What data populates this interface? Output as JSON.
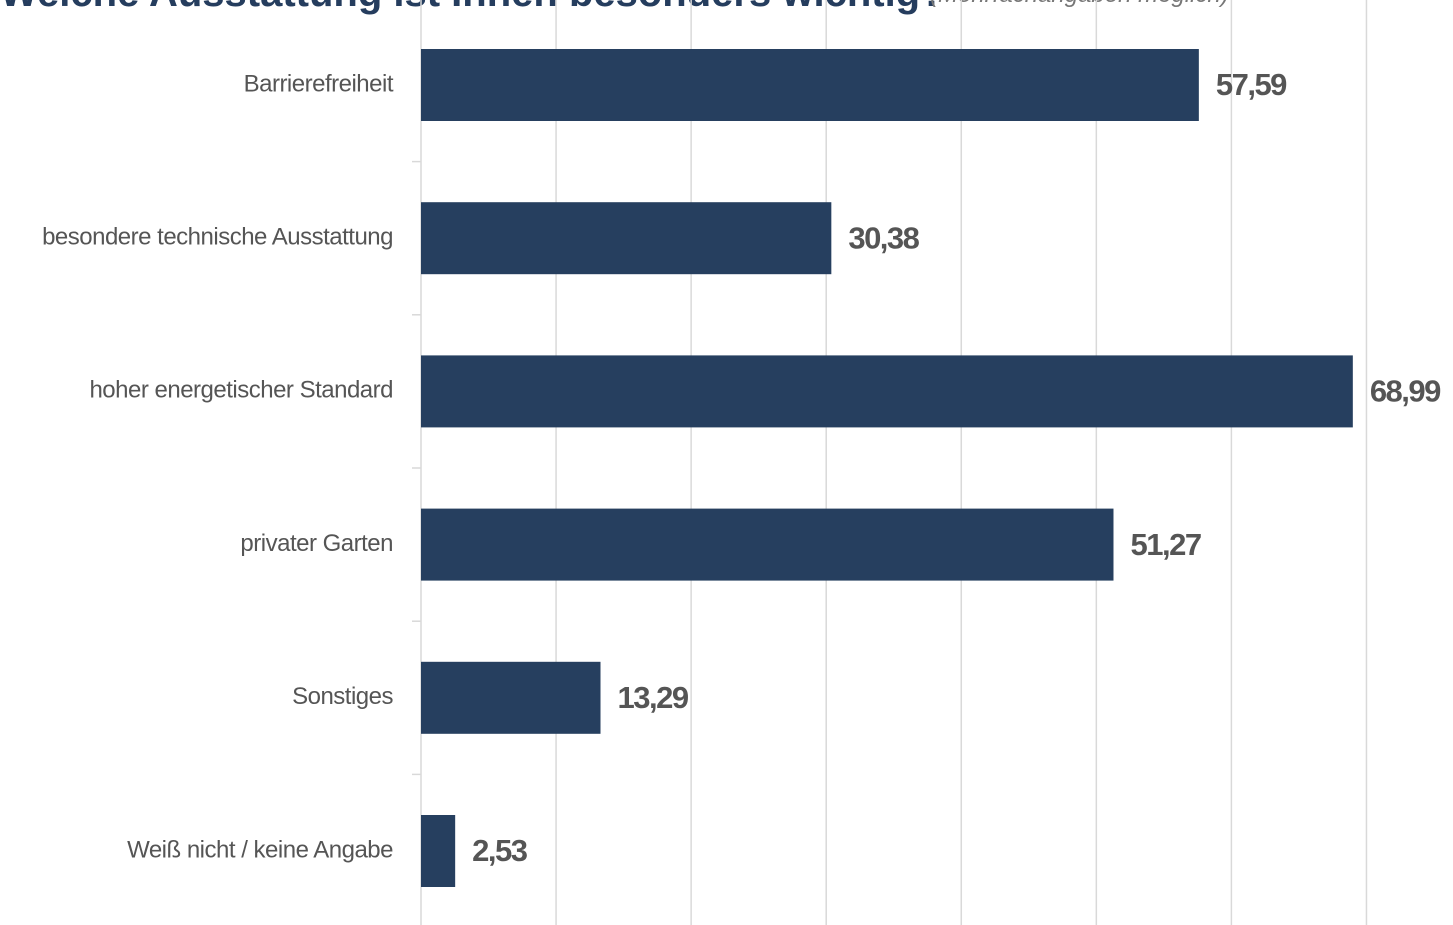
{
  "chart_data": {
    "type": "bar",
    "orientation": "horizontal",
    "title": "Welche Ausstattung ist Ihnen besonders wichtig?",
    "subtitle": "(Mehrfachangaben möglich)",
    "categories": [
      "Barrierefreiheit",
      "besondere technische Ausstattung",
      "hoher energetischer Standard",
      "privater Garten",
      "Sonstiges",
      "Weiß nicht / keine Angabe"
    ],
    "values": [
      57.59,
      30.38,
      68.99,
      51.27,
      13.29,
      2.53
    ],
    "value_labels": [
      "57,59",
      "30,38",
      "68,99",
      "51,27",
      "13,29",
      "2,53"
    ],
    "color": "#263f5f",
    "xlim": [
      0,
      75
    ],
    "xticks": [
      0,
      10,
      20,
      30,
      40,
      50,
      60,
      70
    ],
    "grid": true
  }
}
